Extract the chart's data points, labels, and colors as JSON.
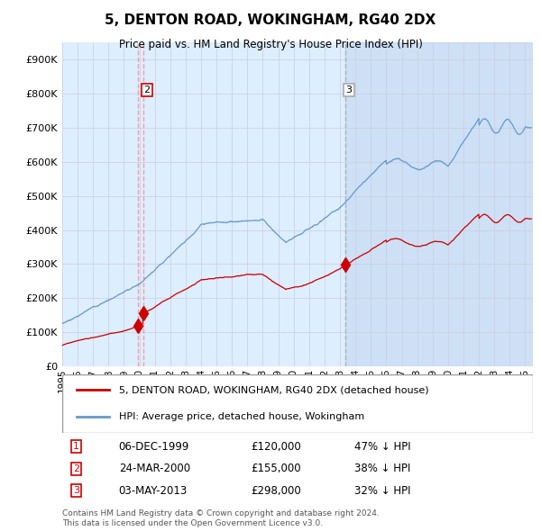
{
  "title": "5, DENTON ROAD, WOKINGHAM, RG40 2DX",
  "subtitle": "Price paid vs. HM Land Registry's House Price Index (HPI)",
  "legend_line1": "5, DENTON ROAD, WOKINGHAM, RG40 2DX (detached house)",
  "legend_line2": "HPI: Average price, detached house, Wokingham",
  "footer1": "Contains HM Land Registry data © Crown copyright and database right 2024.",
  "footer2": "This data is licensed under the Open Government Licence v3.0.",
  "transactions": [
    {
      "num": 1,
      "date": "06-DEC-1999",
      "price": 120000,
      "pct": "47% ↓ HPI",
      "year": 1999.93
    },
    {
      "num": 2,
      "date": "24-MAR-2000",
      "price": 155000,
      "pct": "38% ↓ HPI",
      "year": 2000.23
    },
    {
      "num": 3,
      "date": "03-MAY-2013",
      "price": 298000,
      "pct": "32% ↓ HPI",
      "year": 2013.34
    }
  ],
  "red_color": "#cc0000",
  "blue_color": "#6699cc",
  "bg_color": "#ddeeff",
  "grid_color": "#ccccdd",
  "vline1_color": "#ff8888",
  "vline2_color": "#aaaaaa",
  "ylim": [
    0,
    950000
  ],
  "xlim_start": 1995.0,
  "xlim_end": 2025.5,
  "yticks": [
    0,
    100000,
    200000,
    300000,
    400000,
    500000,
    600000,
    700000,
    800000,
    900000
  ],
  "xticks": [
    1995,
    1996,
    1997,
    1998,
    1999,
    2000,
    2001,
    2002,
    2003,
    2004,
    2005,
    2006,
    2007,
    2008,
    2009,
    2010,
    2011,
    2012,
    2013,
    2014,
    2015,
    2016,
    2017,
    2018,
    2019,
    2020,
    2021,
    2022,
    2023,
    2024,
    2025
  ]
}
